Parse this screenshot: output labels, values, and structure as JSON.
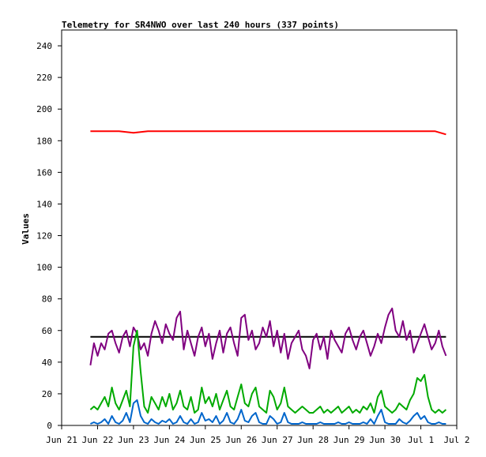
{
  "chart_data": {
    "type": "line",
    "title": "Telemetry for SR4NWO over last 240 hours (337 points)",
    "xlabel": "",
    "ylabel": "Values",
    "ylim": [
      0,
      250
    ],
    "yticks": [
      0,
      20,
      40,
      60,
      80,
      100,
      120,
      140,
      160,
      180,
      200,
      220,
      240
    ],
    "xlim": [
      0,
      11
    ],
    "xticks": [
      {
        "x": 0,
        "label": "Jun 21"
      },
      {
        "x": 1,
        "label": "Jun 22"
      },
      {
        "x": 2,
        "label": "Jun 23"
      },
      {
        "x": 3,
        "label": "Jun 24"
      },
      {
        "x": 4,
        "label": "Jun 25"
      },
      {
        "x": 5,
        "label": "Jun 26"
      },
      {
        "x": 6,
        "label": "Jun 27"
      },
      {
        "x": 7,
        "label": "Jun 28"
      },
      {
        "x": 8,
        "label": "Jun 29"
      },
      {
        "x": 9,
        "label": "Jun 30"
      },
      {
        "x": 10,
        "label": "Jul 1"
      },
      {
        "x": 11,
        "label": "Jul 2"
      }
    ],
    "grid": false,
    "series": [
      {
        "color": "#ff0000",
        "x": [
          0.8,
          1.2,
          1.6,
          2.0,
          2.4,
          2.8,
          3.2,
          3.6,
          4.0,
          4.4,
          4.8,
          5.2,
          5.6,
          6.0,
          6.4,
          6.8,
          7.2,
          7.6,
          8.0,
          8.4,
          8.8,
          9.2,
          9.6,
          10.0,
          10.4,
          10.7
        ],
        "y": [
          186,
          186,
          186,
          185,
          186,
          186,
          186,
          186,
          186,
          186,
          186,
          186,
          186,
          186,
          186,
          186,
          186,
          186,
          186,
          186,
          186,
          186,
          186,
          186,
          186,
          184
        ]
      },
      {
        "color": "#000000",
        "x": [
          0.8,
          10.7
        ],
        "y": [
          56,
          56
        ]
      },
      {
        "color": "#800080",
        "x": [
          0.8,
          0.9,
          1.0,
          1.1,
          1.2,
          1.3,
          1.4,
          1.5,
          1.6,
          1.7,
          1.8,
          1.9,
          2.0,
          2.1,
          2.2,
          2.3,
          2.4,
          2.5,
          2.6,
          2.7,
          2.8,
          2.9,
          3.0,
          3.1,
          3.2,
          3.3,
          3.4,
          3.5,
          3.6,
          3.7,
          3.8,
          3.9,
          4.0,
          4.1,
          4.2,
          4.3,
          4.4,
          4.5,
          4.6,
          4.7,
          4.8,
          4.9,
          5.0,
          5.1,
          5.2,
          5.3,
          5.4,
          5.5,
          5.6,
          5.7,
          5.8,
          5.9,
          6.0,
          6.1,
          6.2,
          6.3,
          6.4,
          6.5,
          6.6,
          6.7,
          6.8,
          6.9,
          7.0,
          7.1,
          7.2,
          7.3,
          7.4,
          7.5,
          7.6,
          7.7,
          7.8,
          7.9,
          8.0,
          8.1,
          8.2,
          8.3,
          8.4,
          8.5,
          8.6,
          8.7,
          8.8,
          8.9,
          9.0,
          9.1,
          9.2,
          9.3,
          9.4,
          9.5,
          9.6,
          9.7,
          9.8,
          9.9,
          10.0,
          10.1,
          10.2,
          10.3,
          10.4,
          10.5,
          10.6,
          10.7
        ],
        "y": [
          38,
          52,
          44,
          52,
          48,
          58,
          60,
          52,
          46,
          56,
          60,
          50,
          62,
          58,
          48,
          52,
          44,
          58,
          66,
          60,
          52,
          64,
          58,
          54,
          68,
          72,
          48,
          60,
          52,
          44,
          56,
          62,
          50,
          58,
          42,
          52,
          60,
          46,
          58,
          62,
          52,
          44,
          68,
          70,
          54,
          60,
          48,
          52,
          62,
          56,
          66,
          50,
          60,
          46,
          58,
          42,
          52,
          56,
          60,
          48,
          44,
          36,
          54,
          58,
          48,
          56,
          42,
          60,
          54,
          50,
          46,
          58,
          62,
          54,
          48,
          56,
          60,
          52,
          44,
          50,
          58,
          52,
          62,
          70,
          74,
          60,
          56,
          66,
          54,
          60,
          46,
          52,
          58,
          64,
          56,
          48,
          52,
          60,
          50,
          44
        ]
      },
      {
        "color": "#00aa00",
        "x": [
          0.8,
          0.9,
          1.0,
          1.1,
          1.2,
          1.3,
          1.4,
          1.5,
          1.6,
          1.7,
          1.8,
          1.9,
          2.0,
          2.1,
          2.2,
          2.3,
          2.4,
          2.5,
          2.6,
          2.7,
          2.8,
          2.9,
          3.0,
          3.1,
          3.2,
          3.3,
          3.4,
          3.5,
          3.6,
          3.7,
          3.8,
          3.9,
          4.0,
          4.1,
          4.2,
          4.3,
          4.4,
          4.5,
          4.6,
          4.7,
          4.8,
          4.9,
          5.0,
          5.1,
          5.2,
          5.3,
          5.4,
          5.5,
          5.6,
          5.7,
          5.8,
          5.9,
          6.0,
          6.1,
          6.2,
          6.3,
          6.4,
          6.5,
          6.6,
          6.7,
          6.8,
          6.9,
          7.0,
          7.1,
          7.2,
          7.3,
          7.4,
          7.5,
          7.6,
          7.7,
          7.8,
          7.9,
          8.0,
          8.1,
          8.2,
          8.3,
          8.4,
          8.5,
          8.6,
          8.7,
          8.8,
          8.9,
          9.0,
          9.1,
          9.2,
          9.3,
          9.4,
          9.5,
          9.6,
          9.7,
          9.8,
          9.9,
          10.0,
          10.1,
          10.2,
          10.3,
          10.4,
          10.5,
          10.6,
          10.7
        ],
        "y": [
          10,
          12,
          10,
          14,
          18,
          12,
          24,
          14,
          10,
          16,
          22,
          12,
          50,
          60,
          34,
          12,
          8,
          18,
          14,
          10,
          18,
          12,
          20,
          10,
          14,
          22,
          12,
          10,
          18,
          8,
          10,
          24,
          14,
          18,
          12,
          20,
          10,
          16,
          22,
          12,
          10,
          18,
          26,
          14,
          12,
          20,
          24,
          12,
          10,
          8,
          22,
          18,
          10,
          14,
          24,
          12,
          10,
          8,
          10,
          12,
          10,
          8,
          8,
          10,
          12,
          8,
          10,
          8,
          10,
          12,
          8,
          10,
          12,
          8,
          10,
          8,
          12,
          10,
          14,
          8,
          18,
          22,
          12,
          10,
          8,
          10,
          14,
          12,
          10,
          16,
          20,
          30,
          28,
          32,
          18,
          10,
          8,
          10,
          8,
          10
        ]
      },
      {
        "color": "#0066cc",
        "x": [
          0.8,
          0.9,
          1.0,
          1.1,
          1.2,
          1.3,
          1.4,
          1.5,
          1.6,
          1.7,
          1.8,
          1.9,
          2.0,
          2.1,
          2.2,
          2.3,
          2.4,
          2.5,
          2.6,
          2.7,
          2.8,
          2.9,
          3.0,
          3.1,
          3.2,
          3.3,
          3.4,
          3.5,
          3.6,
          3.7,
          3.8,
          3.9,
          4.0,
          4.1,
          4.2,
          4.3,
          4.4,
          4.5,
          4.6,
          4.7,
          4.8,
          4.9,
          5.0,
          5.1,
          5.2,
          5.3,
          5.4,
          5.5,
          5.6,
          5.7,
          5.8,
          5.9,
          6.0,
          6.1,
          6.2,
          6.3,
          6.4,
          6.5,
          6.6,
          6.7,
          6.8,
          6.9,
          7.0,
          7.1,
          7.2,
          7.3,
          7.4,
          7.5,
          7.6,
          7.7,
          7.8,
          7.9,
          8.0,
          8.1,
          8.2,
          8.3,
          8.4,
          8.5,
          8.6,
          8.7,
          8.8,
          8.9,
          9.0,
          9.1,
          9.2,
          9.3,
          9.4,
          9.5,
          9.6,
          9.7,
          9.8,
          9.9,
          10.0,
          10.1,
          10.2,
          10.3,
          10.4,
          10.5,
          10.6,
          10.7
        ],
        "y": [
          1,
          2,
          1,
          2,
          4,
          1,
          6,
          2,
          1,
          3,
          8,
          2,
          14,
          16,
          6,
          2,
          1,
          4,
          2,
          1,
          3,
          2,
          4,
          1,
          2,
          6,
          2,
          1,
          4,
          1,
          2,
          8,
          3,
          4,
          2,
          6,
          1,
          3,
          8,
          2,
          1,
          4,
          10,
          3,
          2,
          6,
          8,
          2,
          1,
          1,
          6,
          4,
          1,
          2,
          8,
          2,
          1,
          1,
          1,
          2,
          1,
          1,
          1,
          1,
          2,
          1,
          1,
          1,
          1,
          2,
          1,
          1,
          2,
          1,
          1,
          1,
          2,
          1,
          4,
          1,
          6,
          10,
          2,
          1,
          1,
          1,
          4,
          2,
          1,
          3,
          6,
          8,
          4,
          6,
          2,
          1,
          1,
          2,
          1,
          1
        ]
      }
    ]
  }
}
